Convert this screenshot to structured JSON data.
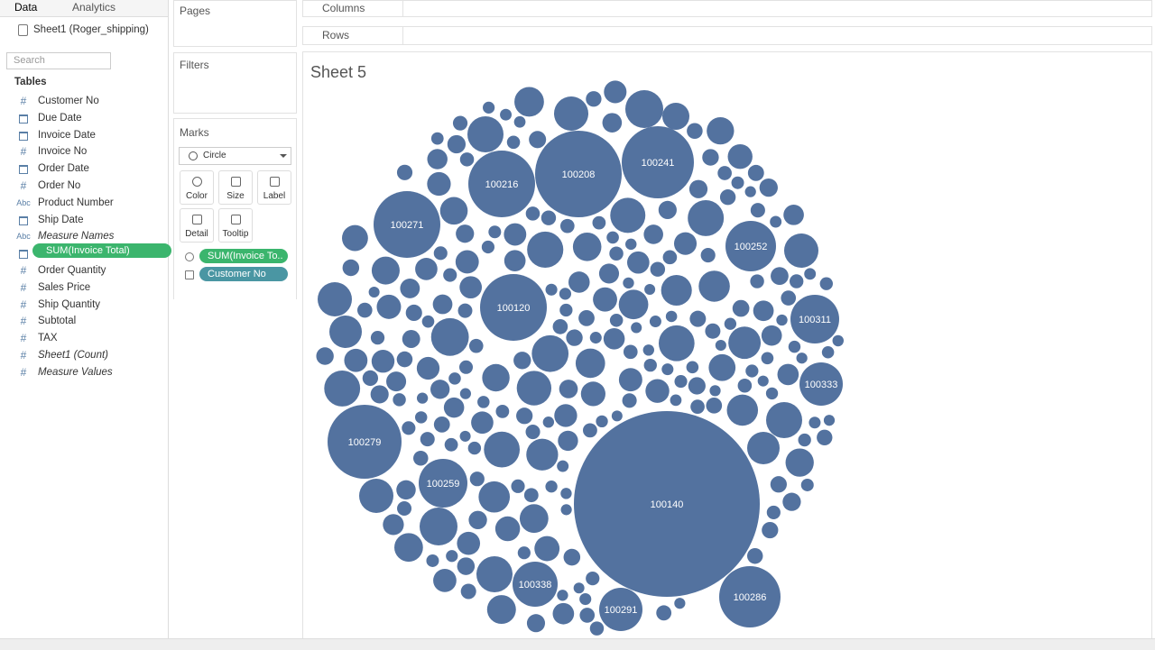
{
  "sidebar": {
    "tabs": [
      "Data",
      "Analytics"
    ],
    "source": "Sheet1 (Roger_shipping)",
    "search_placeholder": "Search",
    "tables_heading": "Tables",
    "fields": [
      {
        "icon": "#",
        "name": "Customer No"
      },
      {
        "icon": null,
        "name": "Due Date"
      },
      {
        "icon": null,
        "name": "Invoice Date"
      },
      {
        "icon": "#",
        "name": "Invoice No"
      },
      {
        "icon": null,
        "name": "Order Date"
      },
      {
        "icon": "#",
        "name": "Order No"
      },
      {
        "icon": "Abc",
        "name": "Product Number"
      },
      {
        "icon": null,
        "name": "Ship Date"
      },
      {
        "icon": "Abc",
        "name": "Measure Names",
        "italic": true
      },
      {
        "icon": null,
        "name": null
      },
      {
        "icon": "#",
        "name": "Order Quantity"
      },
      {
        "icon": "#",
        "name": "Sales Price"
      },
      {
        "icon": "#",
        "name": "Ship Quantity"
      },
      {
        "icon": "#",
        "name": "Subtotal"
      },
      {
        "icon": "#",
        "name": "TAX"
      },
      {
        "icon": "#",
        "name": "Sheet1 (Count)",
        "italic": true
      },
      {
        "icon": "#",
        "name": "Measure Values",
        "italic": true
      }
    ]
  },
  "drag_pill": "SUM(Invoice Total)",
  "shelves": {
    "pages": "Pages",
    "filters": "Filters",
    "columns": "Columns",
    "rows": "Rows"
  },
  "marks": {
    "title": "Marks",
    "mark_type": "Circle",
    "buttons": [
      "Color",
      "Size",
      "Label",
      "Detail",
      "Tooltip"
    ],
    "pills": [
      "SUM(Invoice To..",
      "Customer No"
    ]
  },
  "sheet": {
    "title": "Sheet 5",
    "bubble_labels": [
      "100208",
      "100241",
      "100216",
      "100271",
      "100252",
      "100120",
      "100311",
      "100333",
      "100279",
      "100259",
      "100140",
      "100338",
      "100291",
      "100286"
    ]
  }
}
